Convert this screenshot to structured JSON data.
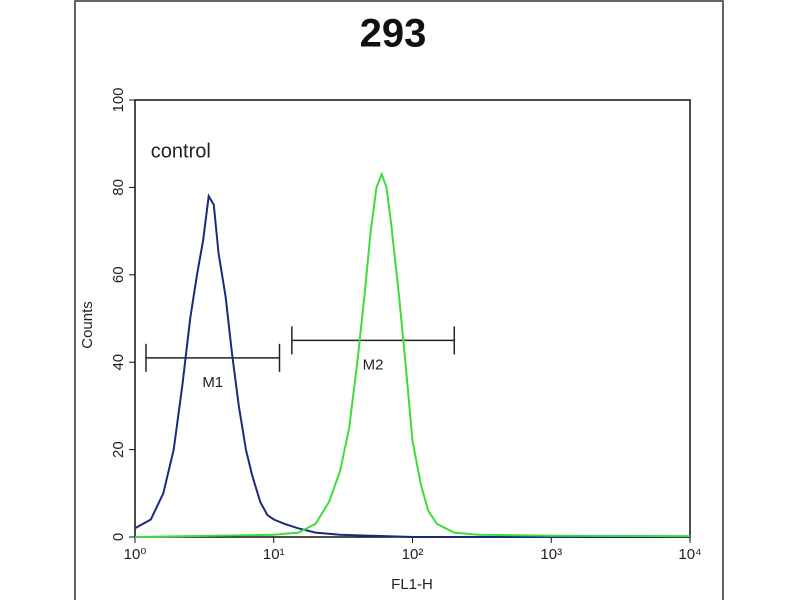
{
  "chart_data": {
    "type": "line",
    "title": "293",
    "xlabel": "FL1-H",
    "ylabel": "Counts",
    "xscale": "log",
    "xlim": [
      1,
      10000
    ],
    "ylim": [
      0,
      100
    ],
    "xticks": [
      {
        "value": 1,
        "label": "10⁰"
      },
      {
        "value": 10,
        "label": "10¹"
      },
      {
        "value": 100,
        "label": "10²"
      },
      {
        "value": 1000,
        "label": "10³"
      },
      {
        "value": 10000,
        "label": "10⁴"
      }
    ],
    "yticks": [
      0,
      20,
      40,
      60,
      80,
      100
    ],
    "annotations": [
      {
        "text": "control",
        "x": 1.3,
        "y": 88
      }
    ],
    "markers": [
      {
        "label": "M1",
        "x": [
          1.2,
          11
        ],
        "y": 41
      },
      {
        "label": "M2",
        "x": [
          13.5,
          200
        ],
        "y": 45
      }
    ],
    "series": [
      {
        "color": "#1b2a7a",
        "x": [
          1,
          1.3,
          1.6,
          1.9,
          2.2,
          2.5,
          2.8,
          3.1,
          3.4,
          3.7,
          4.0,
          4.5,
          5.0,
          5.6,
          6.3,
          7.0,
          8.0,
          9.0,
          10,
          12,
          15,
          20,
          30,
          50,
          100,
          1000,
          10000
        ],
        "values": [
          2,
          4,
          10,
          20,
          35,
          50,
          60,
          68,
          78,
          76,
          65,
          55,
          42,
          30,
          20,
          14,
          8,
          5,
          4,
          3,
          2,
          1,
          0.5,
          0.3,
          0,
          0,
          0
        ]
      },
      {
        "color": "#3ddc3d",
        "x": [
          1,
          10,
          15,
          20,
          25,
          30,
          35,
          40,
          45,
          50,
          55,
          60,
          65,
          70,
          80,
          90,
          100,
          115,
          130,
          150,
          200,
          300,
          1000,
          10000
        ],
        "values": [
          0,
          0.5,
          1,
          3,
          8,
          15,
          25,
          40,
          55,
          70,
          80,
          83,
          80,
          72,
          55,
          38,
          22,
          12,
          6,
          3,
          1,
          0.5,
          0.3,
          0.2
        ]
      }
    ]
  }
}
